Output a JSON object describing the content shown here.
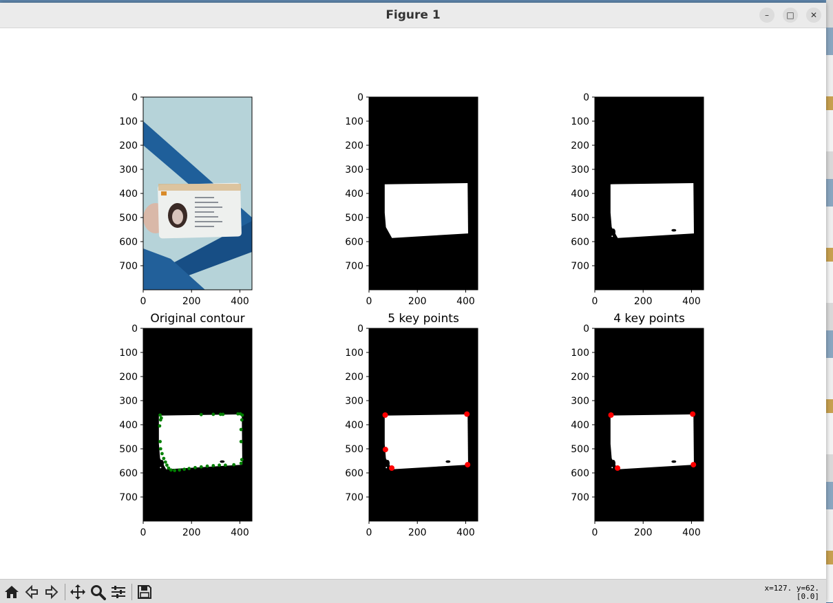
{
  "window": {
    "title": "Figure 1"
  },
  "figure": {
    "panels": [
      {
        "kind": "photo",
        "title": ""
      },
      {
        "kind": "mask",
        "title": ""
      },
      {
        "kind": "mask-detailed",
        "title": ""
      },
      {
        "kind": "contour",
        "title": "Original contour"
      },
      {
        "kind": "keypoints5",
        "title": "5 key points"
      },
      {
        "kind": "keypoints4",
        "title": "4 key points"
      }
    ],
    "yticks": [
      "0",
      "100",
      "200",
      "300",
      "400",
      "500",
      "600",
      "700"
    ],
    "xticks": [
      "0",
      "200",
      "400"
    ],
    "image_size": {
      "width": 450,
      "height": 800
    },
    "colors": {
      "contour": "#007f00",
      "keypoint": "#ff0000",
      "mask": "#ffffff",
      "background": "#000000"
    }
  },
  "chart_data": [
    {
      "type": "image",
      "title": "",
      "content": "photo of ID card held against blue wooden beams",
      "xlim": [
        0,
        450
      ],
      "ylim": [
        800,
        0
      ]
    },
    {
      "type": "image",
      "title": "",
      "content": "binary mask",
      "xlim": [
        0,
        450
      ],
      "ylim": [
        800,
        0
      ]
    },
    {
      "type": "image",
      "title": "",
      "content": "binary mask with holes",
      "xlim": [
        0,
        450
      ],
      "ylim": [
        800,
        0
      ]
    },
    {
      "type": "scatter",
      "title": "Original contour",
      "points": [
        [
          70,
          360
        ],
        [
          75,
          372
        ],
        [
          72,
          380
        ],
        [
          68,
          405
        ],
        [
          70,
          470
        ],
        [
          72,
          500
        ],
        [
          78,
          520
        ],
        [
          85,
          540
        ],
        [
          92,
          555
        ],
        [
          98,
          568
        ],
        [
          105,
          580
        ],
        [
          115,
          588
        ],
        [
          130,
          590
        ],
        [
          150,
          588
        ],
        [
          170,
          585
        ],
        [
          190,
          582
        ],
        [
          215,
          578
        ],
        [
          240,
          575
        ],
        [
          265,
          572
        ],
        [
          290,
          570
        ],
        [
          315,
          568
        ],
        [
          340,
          568
        ],
        [
          375,
          566
        ],
        [
          405,
          560
        ],
        [
          408,
          545
        ],
        [
          405,
          470
        ],
        [
          405,
          420
        ],
        [
          408,
          380
        ],
        [
          410,
          360
        ],
        [
          402,
          355
        ],
        [
          392,
          355
        ],
        [
          330,
          357
        ],
        [
          320,
          357
        ],
        [
          290,
          357
        ],
        [
          240,
          358
        ]
      ],
      "xlim": [
        0,
        450
      ],
      "ylim": [
        800,
        0
      ]
    },
    {
      "type": "scatter",
      "title": "5 key points",
      "points": [
        [
          67,
          360
        ],
        [
          405,
          356
        ],
        [
          68,
          503
        ],
        [
          94,
          580
        ],
        [
          408,
          566
        ]
      ],
      "xlim": [
        0,
        450
      ],
      "ylim": [
        800,
        0
      ]
    },
    {
      "type": "scatter",
      "title": "4 key points",
      "points": [
        [
          67,
          360
        ],
        [
          405,
          356
        ],
        [
          94,
          580
        ],
        [
          408,
          566
        ]
      ],
      "xlim": [
        0,
        450
      ],
      "ylim": [
        800,
        0
      ]
    }
  ],
  "toolbar": {
    "buttons": [
      {
        "name": "home-icon",
        "tooltip": "Reset original view"
      },
      {
        "name": "back-arrow-icon",
        "tooltip": "Back"
      },
      {
        "name": "forward-arrow-icon",
        "tooltip": "Forward"
      },
      {
        "name": "pan-icon",
        "tooltip": "Pan"
      },
      {
        "name": "zoom-icon",
        "tooltip": "Zoom"
      },
      {
        "name": "configure-subplots-icon",
        "tooltip": "Configure subplots"
      },
      {
        "name": "save-icon",
        "tooltip": "Save"
      }
    ],
    "coord_line1": "x=127. y=62.",
    "coord_line2": "[0.0]"
  }
}
